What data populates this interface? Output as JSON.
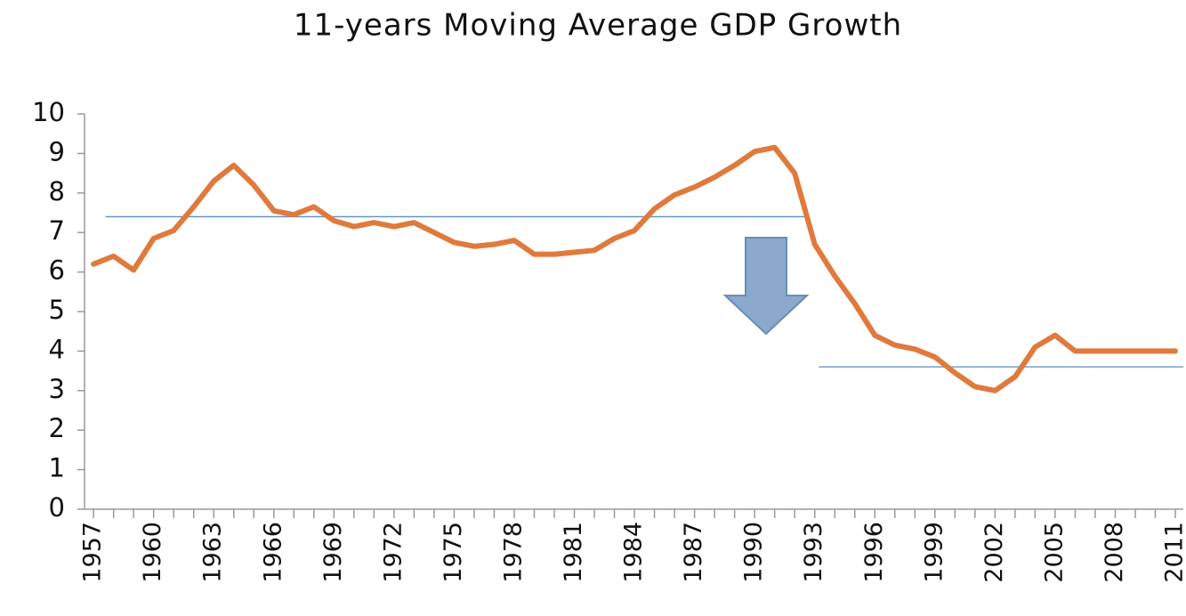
{
  "chart_data": {
    "type": "line",
    "title": "11-years Moving Average GDP Growth",
    "x": [
      1957,
      1958,
      1959,
      1960,
      1961,
      1962,
      1963,
      1964,
      1965,
      1966,
      1967,
      1968,
      1969,
      1970,
      1971,
      1972,
      1973,
      1974,
      1975,
      1976,
      1977,
      1978,
      1979,
      1980,
      1981,
      1982,
      1983,
      1984,
      1985,
      1986,
      1987,
      1988,
      1989,
      1990,
      1991,
      1992,
      1993,
      1994,
      1995,
      1996,
      1997,
      1998,
      1999,
      2000,
      2001,
      2002,
      2003,
      2004,
      2005,
      2006,
      2007,
      2008,
      2009,
      2010,
      2011
    ],
    "series": [
      {
        "color": "#e07a3c",
        "values": [
          6.2,
          6.4,
          6.05,
          6.85,
          7.05,
          7.65,
          8.3,
          8.7,
          8.2,
          7.55,
          7.45,
          7.65,
          7.3,
          7.15,
          7.25,
          7.15,
          7.25,
          7.0,
          6.75,
          6.65,
          6.7,
          6.8,
          6.45,
          6.45,
          6.5,
          6.55,
          6.85,
          7.05,
          7.6,
          7.95,
          8.15,
          8.4,
          8.7,
          9.05,
          9.15,
          8.5,
          6.7,
          5.9,
          5.2,
          4.4,
          4.15,
          4.05,
          3.85,
          3.45,
          3.1,
          3.0,
          3.35,
          4.1,
          4.4,
          4.0,
          4.0,
          4.0,
          4.0,
          4.0,
          4.0
        ]
      }
    ],
    "reference_lines": [
      {
        "value": 7.4,
        "x": [
          1957.6,
          1992.7
        ],
        "color": "#5b8ec6"
      },
      {
        "value": 3.6,
        "x": [
          1993.2,
          2011.4
        ],
        "color": "#5b8ec6"
      }
    ],
    "xlim": [
      1956.55,
      2011.4
    ],
    "xticks": [
      1957,
      1960,
      1963,
      1966,
      1969,
      1972,
      1975,
      1978,
      1981,
      1984,
      1987,
      1990,
      1993,
      1996,
      1999,
      2002,
      2005,
      2008,
      2011
    ],
    "ylim": [
      0,
      10
    ],
    "yticks": [
      0,
      1,
      2,
      3,
      4,
      5,
      6,
      7,
      8,
      9,
      10
    ],
    "grid": false
  }
}
